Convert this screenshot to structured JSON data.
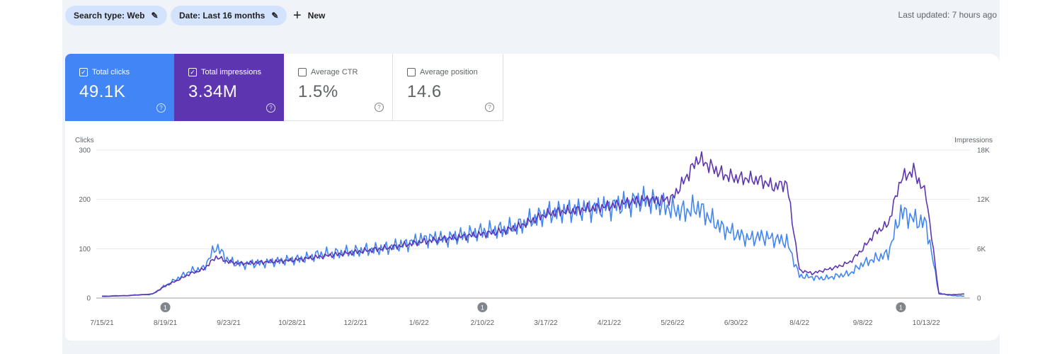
{
  "filters": {
    "search_type": "Search type: Web",
    "date": "Date: Last 16 months",
    "new_label": "New"
  },
  "last_updated": "Last updated: 7 hours ago",
  "metrics": [
    {
      "label": "Total clicks",
      "value": "49.1K",
      "checked": true,
      "color": "#4285f4"
    },
    {
      "label": "Total impressions",
      "value": "3.34M",
      "checked": true,
      "color": "#5e35b1"
    },
    {
      "label": "Average CTR",
      "value": "1.5%",
      "checked": false
    },
    {
      "label": "Average position",
      "value": "14.6",
      "checked": false
    }
  ],
  "chart_data": {
    "type": "line",
    "left_axis": {
      "label": "Clicks",
      "ticks": [
        "300",
        "200",
        "100",
        "0"
      ],
      "range": [
        0,
        300
      ]
    },
    "right_axis": {
      "label": "Impressions",
      "ticks": [
        "18K",
        "12K",
        "6K",
        "0"
      ],
      "range": [
        0,
        18000
      ]
    },
    "x_ticks": [
      "7/15/21",
      "8/19/21",
      "9/23/21",
      "10/28/21",
      "12/2/21",
      "1/6/22",
      "2/10/22",
      "3/17/22",
      "4/21/22",
      "5/26/22",
      "6/30/22",
      "8/4/22",
      "9/8/22",
      "10/13/22"
    ],
    "annotations": [
      {
        "label": "1",
        "x": "8/19/21"
      },
      {
        "label": "1",
        "x": "2/10/22"
      },
      {
        "label": "1",
        "x": "9/29/22"
      }
    ],
    "grid": true,
    "series": [
      {
        "name": "Clicks",
        "color": "#4285f4",
        "axis": "left",
        "x": [
          "7/15/21",
          "7/29/21",
          "8/12/21",
          "8/19/21",
          "8/26/21",
          "9/2/21",
          "9/9/21",
          "9/16/21",
          "9/23/21",
          "9/30/21",
          "10/7/21",
          "10/14/21",
          "10/21/21",
          "10/28/21",
          "11/4/21",
          "11/11/21",
          "11/18/21",
          "11/25/21",
          "12/2/21",
          "12/9/21",
          "12/16/21",
          "12/23/21",
          "12/30/21",
          "1/6/22",
          "1/13/22",
          "1/20/22",
          "1/27/22",
          "2/3/22",
          "2/10/22",
          "2/17/22",
          "2/24/22",
          "3/3/22",
          "3/10/22",
          "3/17/22",
          "3/24/22",
          "3/31/22",
          "4/7/22",
          "4/14/22",
          "4/21/22",
          "4/28/22",
          "5/5/22",
          "5/12/22",
          "5/19/22",
          "5/26/22",
          "6/2/22",
          "6/9/22",
          "6/16/22",
          "6/23/22",
          "6/30/22",
          "7/7/22",
          "7/14/22",
          "7/21/22",
          "7/28/22",
          "8/4/22",
          "8/11/22",
          "8/18/22",
          "8/25/22",
          "9/1/22",
          "9/8/22",
          "9/15/22",
          "9/22/22",
          "9/29/22",
          "10/6/22",
          "10/13/22",
          "10/20/22",
          "10/27/22",
          "11/3/22"
        ],
        "values": [
          4,
          5,
          8,
          25,
          40,
          55,
          60,
          105,
          75,
          68,
          70,
          72,
          75,
          78,
          80,
          88,
          90,
          92,
          95,
          98,
          100,
          105,
          110,
          118,
          122,
          120,
          125,
          130,
          135,
          138,
          140,
          148,
          160,
          170,
          175,
          178,
          180,
          182,
          185,
          190,
          195,
          200,
          190,
          180,
          175,
          185,
          160,
          140,
          130,
          120,
          125,
          120,
          115,
          45,
          42,
          40,
          45,
          50,
          70,
          80,
          90,
          175,
          160,
          150,
          10,
          5,
          4
        ]
      },
      {
        "name": "Impressions",
        "color": "#5e35b1",
        "axis": "right",
        "x": [
          "7/15/21",
          "7/29/21",
          "8/12/21",
          "8/19/21",
          "8/26/21",
          "9/2/21",
          "9/9/21",
          "9/16/21",
          "9/23/21",
          "9/30/21",
          "10/7/21",
          "10/14/21",
          "10/21/21",
          "10/28/21",
          "11/4/21",
          "11/11/21",
          "11/18/21",
          "11/25/21",
          "12/2/21",
          "12/9/21",
          "12/16/21",
          "12/23/21",
          "12/30/21",
          "1/6/22",
          "1/13/22",
          "1/20/22",
          "1/27/22",
          "2/3/22",
          "2/10/22",
          "2/17/22",
          "2/24/22",
          "3/3/22",
          "3/10/22",
          "3/17/22",
          "3/24/22",
          "3/31/22",
          "4/7/22",
          "4/14/22",
          "4/21/22",
          "4/28/22",
          "5/5/22",
          "5/12/22",
          "5/19/22",
          "5/26/22",
          "6/2/22",
          "6/9/22",
          "6/16/22",
          "6/23/22",
          "6/30/22",
          "7/7/22",
          "7/14/22",
          "7/21/22",
          "7/28/22",
          "8/4/22",
          "8/11/22",
          "8/18/22",
          "8/25/22",
          "9/1/22",
          "9/8/22",
          "9/15/22",
          "9/22/22",
          "9/29/22",
          "10/6/22",
          "10/13/22",
          "10/20/22",
          "10/27/22",
          "11/3/22"
        ],
        "values": [
          200,
          300,
          500,
          1500,
          2200,
          3000,
          3500,
          5000,
          4400,
          4200,
          4300,
          4400,
          4500,
          4600,
          4800,
          5000,
          5200,
          5400,
          5600,
          5800,
          6000,
          6200,
          6500,
          6800,
          7000,
          7200,
          7400,
          7600,
          7800,
          8000,
          8300,
          8800,
          9500,
          10200,
          10500,
          10600,
          10800,
          11000,
          11200,
          11500,
          11800,
          12000,
          11800,
          12200,
          14500,
          17000,
          16000,
          15000,
          14600,
          14500,
          14300,
          13500,
          14000,
          3400,
          3000,
          3400,
          3800,
          4400,
          6000,
          8000,
          9000,
          14500,
          15500,
          12500,
          500,
          400,
          500
        ]
      }
    ]
  }
}
